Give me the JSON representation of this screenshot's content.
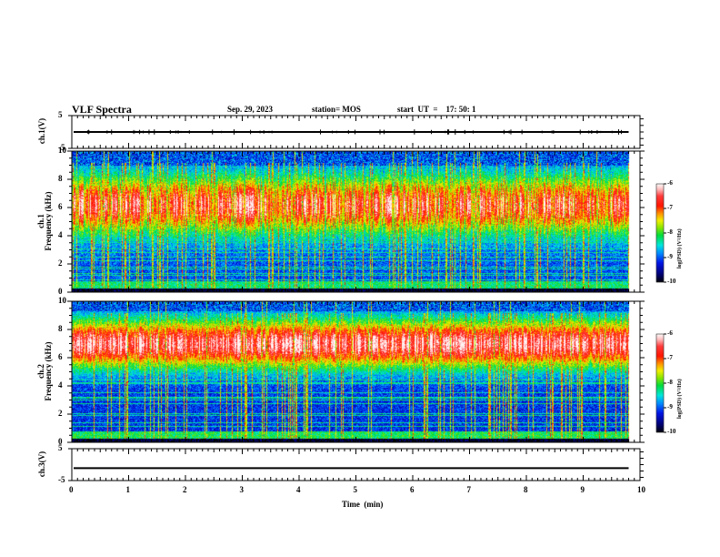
{
  "header": {
    "title": "VLF Spectra",
    "date": "Sep. 29, 2023",
    "station": "station= MOS",
    "start": "start  UT  =    17: 50: 1"
  },
  "chart_data": [
    {
      "type": "line",
      "name": "ch1-waveform",
      "ylabel": "ch.1(V)",
      "ylim": [
        -5,
        5
      ],
      "yticks": [
        "5",
        "-5"
      ],
      "xlim": [
        0,
        10
      ],
      "data_extent_min": [
        0,
        9.8
      ],
      "description": "near-zero flat trace with small spikes",
      "values_approx": 0
    },
    {
      "type": "heatmap",
      "name": "ch1-spectrogram",
      "ylabel_line1": "ch.1",
      "ylabel_line2": "Frequency (kHz)",
      "ylim": [
        0,
        10
      ],
      "yticks": [
        "0",
        "2",
        "4",
        "6",
        "8",
        "10"
      ],
      "xlim": [
        0,
        10
      ],
      "data_extent_min": [
        0,
        9.8
      ],
      "colorbar": {
        "label": "log(PSD) (V²/Hz)",
        "range": [
          -10,
          -6
        ],
        "ticks": [
          "-6",
          "-7",
          "-8",
          "-9",
          "-10"
        ]
      },
      "description": "intense emissions 0.5-9 kHz with strongest power ~5-9 kHz, bursty vertical structure, horizontal narrowband lines below 3 kHz"
    },
    {
      "type": "heatmap",
      "name": "ch2-spectrogram",
      "ylabel_line1": "ch.2",
      "ylabel_line2": "Frequency (kHz)",
      "ylim": [
        0,
        10
      ],
      "yticks": [
        "0",
        "2",
        "4",
        "6",
        "8",
        "10"
      ],
      "xlim": [
        0,
        10
      ],
      "data_extent_min": [
        0,
        9.8
      ],
      "colorbar": {
        "label": "log(PSD) (V²/Hz)",
        "range": [
          -10,
          -6
        ],
        "ticks": [
          "-6",
          "-7",
          "-8",
          "-9",
          "-10"
        ]
      },
      "description": "continuous intense band 4-9 kHz peaking ~6-8 kHz, weaker below 3 kHz with narrowband lines"
    },
    {
      "type": "line",
      "name": "ch3-waveform",
      "ylabel": "ch.3(V)",
      "ylim": [
        -5,
        5
      ],
      "yticks": [
        "5",
        "-5"
      ],
      "xlim": [
        0,
        10
      ],
      "data_extent_min": [
        0,
        9.8
      ],
      "values_approx": -1.1
    }
  ],
  "xaxis": {
    "label": "Time  (min)",
    "ticks": [
      "0",
      "1",
      "2",
      "3",
      "4",
      "5",
      "6",
      "7",
      "8",
      "9",
      "10"
    ]
  }
}
